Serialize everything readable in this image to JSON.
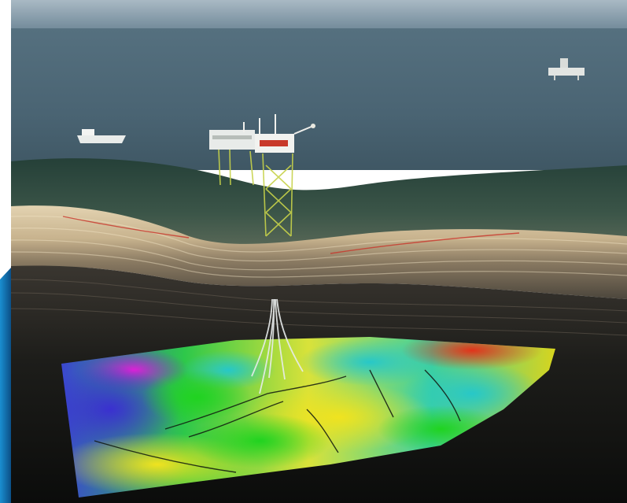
{
  "image": {
    "subject": "offshore-platform-subsurface-reservoir-illustration",
    "palette": {
      "sea": "#4f6a7a",
      "sky": "#8fa7b6",
      "seabed": "#2c463d",
      "sediment_light": "#d8c7a4",
      "rock_dark": "#141614",
      "reservoir_magenta": "#d21fd0",
      "reservoir_blue": "#3f3fd8",
      "reservoir_green": "#30d33a",
      "reservoir_yellow": "#e4d81f",
      "reservoir_red": "#e03a1a",
      "left_edge_accent": "#1a8fd1"
    },
    "icons": [
      "platform",
      "supply-vessel",
      "distant-rig",
      "well-bores"
    ]
  }
}
